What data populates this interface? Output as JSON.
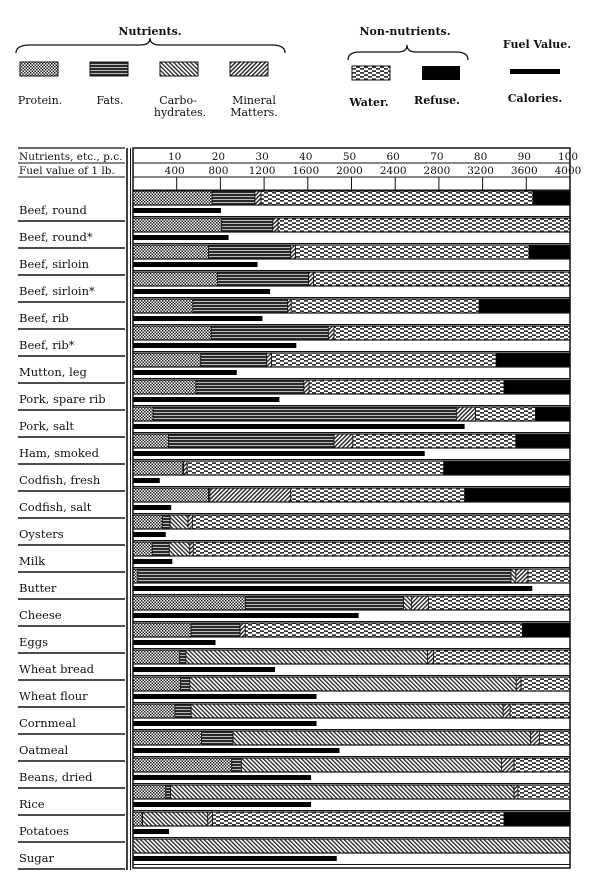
{
  "legend": {
    "nutrients_title": "Nutrients.",
    "non_nutrients_title": "Non-nutrients.",
    "fuel_title": "Fuel Value.",
    "protein": "Protein.",
    "fats": "Fats.",
    "carbs_1": "Carbo-",
    "carbs_2": "hydrates.",
    "mineral_1": "Mineral",
    "mineral_2": "Matters.",
    "water": "Water.",
    "refuse": "Refuse.",
    "calories": "Calories."
  },
  "chart_data": {
    "type": "bar",
    "stacked": true,
    "orientation": "horizontal",
    "axis_label_percent": "Nutrients, etc., p.c.",
    "axis_label_fuel": "Fuel value of 1 lb.",
    "percent_ticks": [
      "10",
      "20",
      "30",
      "40",
      "50",
      "60",
      "70",
      "80",
      "90",
      "100"
    ],
    "fuel_ticks": [
      "400",
      "800",
      "1200",
      "1600",
      "2000",
      "2400",
      "2800",
      "3200",
      "3600",
      "4000"
    ],
    "xlim_percent": [
      0,
      100
    ],
    "xlim_calories": [
      0,
      4000
    ],
    "grid": false,
    "components": [
      "protein",
      "fats",
      "carbs",
      "mineral",
      "water",
      "refuse"
    ],
    "rows": [
      {
        "food": "Beef, round",
        "protein": 18.1,
        "fats": 9.8,
        "carbs": 0,
        "mineral": 1.4,
        "water": 62.2,
        "refuse": 8.5,
        "calories": 805
      },
      {
        "food": "Beef, round*",
        "protein": 20.3,
        "fats": 11.7,
        "carbs": 0,
        "mineral": 1.2,
        "water": 66.8,
        "refuse": 0,
        "calories": 875
      },
      {
        "food": "Beef, sirloin",
        "protein": 17.3,
        "fats": 18.8,
        "carbs": 0,
        "mineral": 1.1,
        "water": 53.4,
        "refuse": 9.4,
        "calories": 1140
      },
      {
        "food": "Beef, sirloin*",
        "protein": 19.3,
        "fats": 20.9,
        "carbs": 0,
        "mineral": 1.1,
        "water": 58.7,
        "refuse": 0,
        "calories": 1255
      },
      {
        "food": "Beef, rib",
        "protein": 13.7,
        "fats": 21.7,
        "carbs": 0,
        "mineral": 0.8,
        "water": 43.0,
        "refuse": 20.8,
        "calories": 1185
      },
      {
        "food": "Beef, rib*",
        "protein": 17.9,
        "fats": 26.8,
        "carbs": 0,
        "mineral": 1.3,
        "water": 54.0,
        "refuse": 0,
        "calories": 1495
      },
      {
        "food": "Mutton, leg",
        "protein": 15.5,
        "fats": 15.1,
        "carbs": 0,
        "mineral": 1.1,
        "water": 51.4,
        "refuse": 16.9,
        "calories": 950
      },
      {
        "food": "Pork, spare rib",
        "protein": 14.4,
        "fats": 24.7,
        "carbs": 0,
        "mineral": 1.2,
        "water": 44.6,
        "refuse": 15.1,
        "calories": 1340
      },
      {
        "food": "Pork, salt",
        "protein": 4.6,
        "fats": 69.4,
        "carbs": 0,
        "mineral": 4.4,
        "water": 13.7,
        "refuse": 7.9,
        "calories": 3035
      },
      {
        "food": "Ham, smoked",
        "protein": 8.1,
        "fats": 37.9,
        "carbs": 0,
        "mineral": 4.3,
        "water": 37.3,
        "refuse": 12.4,
        "calories": 2670
      },
      {
        "food": "Codfish, fresh",
        "protein": 11.4,
        "fats": 0.2,
        "carbs": 0,
        "mineral": 0.8,
        "water": 58.7,
        "refuse": 28.9,
        "calories": 245
      },
      {
        "food": "Codfish, salt",
        "protein": 17.3,
        "fats": 0.3,
        "carbs": 0,
        "mineral": 18.5,
        "water": 39.8,
        "refuse": 24.1,
        "calories": 350
      },
      {
        "food": "Oysters",
        "protein": 6.7,
        "fats": 1.8,
        "carbs": 4.1,
        "mineral": 1.0,
        "water": 86.4,
        "refuse": 0,
        "calories": 300
      },
      {
        "food": "Milk",
        "protein": 4.4,
        "fats": 3.9,
        "carbs": 4.7,
        "mineral": 0.8,
        "water": 86.2,
        "refuse": 0,
        "calories": 360
      },
      {
        "food": "Butter",
        "protein": 1.1,
        "fats": 85.4,
        "carbs": 1.1,
        "mineral": 2.8,
        "water": 9.6,
        "refuse": 0,
        "calories": 3655
      },
      {
        "food": "Cheese",
        "protein": 25.7,
        "fats": 36.2,
        "carbs": 1.8,
        "mineral": 3.9,
        "water": 32.4,
        "refuse": 0,
        "calories": 2065
      },
      {
        "food": "Eggs",
        "protein": 13.3,
        "fats": 11.2,
        "carbs": 0,
        "mineral": 1.2,
        "water": 63.4,
        "refuse": 10.9,
        "calories": 755
      },
      {
        "food": "Wheat bread",
        "protein": 10.7,
        "fats": 1.4,
        "carbs": 55.3,
        "mineral": 1.4,
        "water": 31.2,
        "refuse": 0,
        "calories": 1300
      },
      {
        "food": "Wheat flour",
        "protein": 10.9,
        "fats": 2.1,
        "carbs": 74.7,
        "mineral": 1.1,
        "water": 11.2,
        "refuse": 0,
        "calories": 1680
      },
      {
        "food": "Cornmeal",
        "protein": 9.6,
        "fats": 3.7,
        "carbs": 71.4,
        "mineral": 1.6,
        "water": 13.7,
        "refuse": 0,
        "calories": 1680
      },
      {
        "food": "Oatmeal",
        "protein": 15.7,
        "fats": 7.2,
        "carbs": 68.1,
        "mineral": 2.0,
        "water": 7.0,
        "refuse": 0,
        "calories": 1890
      },
      {
        "food": "Beans, dried",
        "protein": 22.6,
        "fats": 2.2,
        "carbs": 59.5,
        "mineral": 2.9,
        "water": 12.8,
        "refuse": 0,
        "calories": 1630
      },
      {
        "food": "Rice",
        "protein": 7.5,
        "fats": 1.1,
        "carbs": 78.6,
        "mineral": 0.9,
        "water": 11.9,
        "refuse": 0,
        "calories": 1630
      },
      {
        "food": "Potatoes",
        "protein": 2.1,
        "fats": 0.1,
        "carbs": 14.9,
        "mineral": 1.1,
        "water": 66.7,
        "refuse": 15.1,
        "calories": 330
      },
      {
        "food": "Sugar",
        "protein": 0,
        "fats": 0,
        "carbs": 100,
        "mineral": 0,
        "water": 0,
        "refuse": 0,
        "calories": 1865
      }
    ]
  }
}
